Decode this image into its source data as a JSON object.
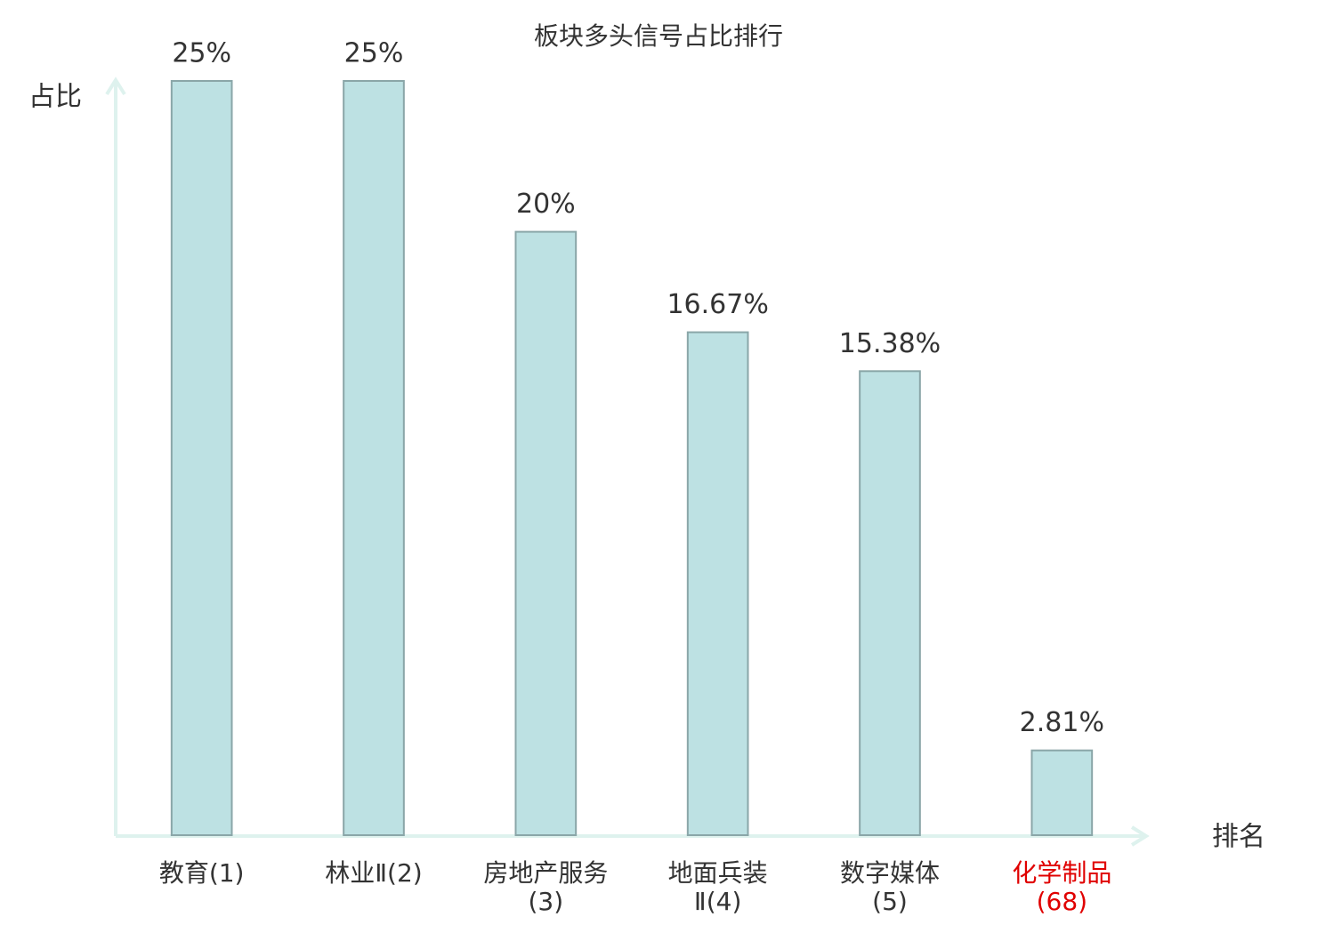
{
  "chart_data": {
    "type": "bar",
    "title": "板块多头信号占比排行",
    "y_label": "占比",
    "x_label": "排名",
    "categories": [
      "教育(1)",
      "林业Ⅱ(2)",
      "房地产服务(3)",
      "地面兵装Ⅱ(4)",
      "数字媒体(5)",
      "化学制品(68)"
    ],
    "values": [
      25,
      25,
      20,
      16.67,
      15.38,
      2.81
    ],
    "value_labels": [
      "25%",
      "25%",
      "20%",
      "16.67%",
      "15.38%",
      "2.81%"
    ],
    "color": "#bde1e3",
    "edge_color": "#8aa6a8",
    "label_colors": [
      "#333333",
      "#333333",
      "#333333",
      "#333333",
      "#333333",
      "#e00000"
    ],
    "ylim": [
      0,
      25
    ]
  }
}
